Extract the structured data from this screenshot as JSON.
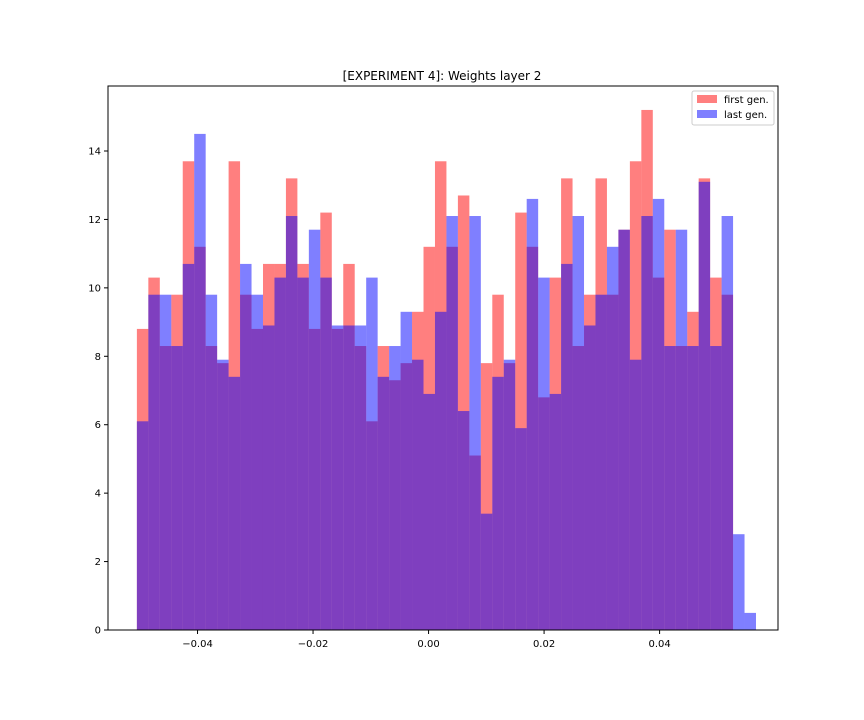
{
  "chart_data": {
    "type": "bar",
    "subtype": "overlaid-histogram",
    "title": "[EXPERIMENT 4]: Weights layer 2",
    "xlabel": "",
    "ylabel": "",
    "xlim": [
      -0.0555,
      0.0605
    ],
    "ylim": [
      0,
      15.9
    ],
    "xticks": [
      -0.04,
      -0.02,
      0.0,
      0.02,
      0.04
    ],
    "xtick_labels": [
      "−0.04",
      "−0.02",
      "0.00",
      "0.02",
      "0.04"
    ],
    "yticks": [
      0,
      2,
      4,
      6,
      8,
      10,
      12,
      14
    ],
    "ytick_labels": [
      "0",
      "2",
      "4",
      "6",
      "8",
      "10",
      "12",
      "14"
    ],
    "grid": false,
    "legend_position": "top-right",
    "colors": {
      "first": "#ff0000",
      "last": "#0000ff",
      "alpha": 0.5
    },
    "series": [
      {
        "name": "first gen.",
        "bin_start": -0.0505,
        "bin_width": 0.001985,
        "values": [
          8.8,
          10.3,
          8.3,
          9.8,
          13.7,
          11.2,
          8.3,
          7.8,
          13.7,
          9.8,
          8.8,
          10.7,
          10.7,
          13.2,
          10.7,
          8.8,
          12.2,
          8.8,
          10.7,
          8.3,
          6.1,
          8.3,
          7.3,
          7.8,
          9.3,
          11.2,
          13.7,
          11.2,
          12.7,
          5.1,
          7.8,
          9.8,
          7.8,
          12.2,
          11.2,
          6.8,
          10.3,
          13.2,
          8.3,
          9.8,
          13.2,
          9.8,
          11.7,
          13.7,
          15.2,
          10.3,
          11.7,
          8.3,
          9.3,
          13.2,
          10.3,
          9.8
        ]
      },
      {
        "name": "last gen.",
        "bin_start": -0.0505,
        "bin_width": 0.001985,
        "values": [
          6.1,
          9.8,
          9.8,
          8.3,
          10.7,
          14.5,
          9.8,
          7.9,
          7.4,
          10.7,
          9.8,
          8.9,
          10.3,
          12.1,
          10.3,
          11.7,
          10.3,
          8.9,
          8.9,
          8.9,
          10.3,
          7.4,
          8.3,
          9.3,
          7.9,
          6.9,
          9.3,
          12.1,
          6.4,
          12.1,
          3.4,
          7.4,
          7.9,
          5.9,
          12.6,
          10.3,
          6.9,
          10.7,
          12.1,
          8.9,
          9.8,
          11.2,
          11.7,
          7.9,
          12.1,
          12.6,
          8.3,
          11.7,
          8.3,
          13.1,
          8.3,
          12.1,
          2.8,
          0.5
        ]
      }
    ]
  }
}
